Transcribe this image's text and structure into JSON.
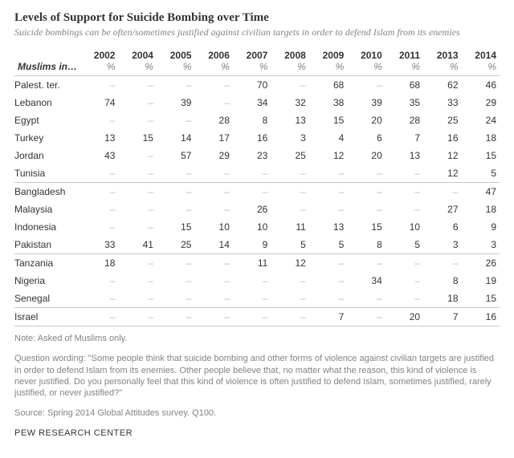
{
  "title": "Levels of Support for Suicide Bombing over Time",
  "subtitle": "Suicide bombings can be often/sometimes justified against civilian targets in order to defend Islam from its enemies",
  "stub_header": "Muslims in…",
  "pct_label": "%",
  "years": [
    "2002",
    "2004",
    "2005",
    "2006",
    "2007",
    "2008",
    "2009",
    "2010",
    "2011",
    "2013",
    "2014"
  ],
  "groups": [
    {
      "rows": [
        {
          "label": "Palest. ter.",
          "v": [
            "–",
            "–",
            "–",
            "–",
            "70",
            "–",
            "68",
            "–",
            "68",
            "62",
            "46"
          ]
        },
        {
          "label": "Lebanon",
          "v": [
            "74",
            "–",
            "39",
            "–",
            "34",
            "32",
            "38",
            "39",
            "35",
            "33",
            "29"
          ]
        },
        {
          "label": "Egypt",
          "v": [
            "–",
            "–",
            "–",
            "28",
            "8",
            "13",
            "15",
            "20",
            "28",
            "25",
            "24"
          ]
        },
        {
          "label": "Turkey",
          "v": [
            "13",
            "15",
            "14",
            "17",
            "16",
            "3",
            "4",
            "6",
            "7",
            "16",
            "18"
          ]
        },
        {
          "label": "Jordan",
          "v": [
            "43",
            "–",
            "57",
            "29",
            "23",
            "25",
            "12",
            "20",
            "13",
            "12",
            "15"
          ]
        },
        {
          "label": "Tunisia",
          "v": [
            "–",
            "–",
            "–",
            "–",
            "–",
            "–",
            "–",
            "–",
            "–",
            "12",
            "5"
          ]
        }
      ]
    },
    {
      "rows": [
        {
          "label": "Bangladesh",
          "v": [
            "–",
            "–",
            "–",
            "–",
            "–",
            "–",
            "–",
            "–",
            "–",
            "–",
            "47"
          ]
        },
        {
          "label": "Malaysia",
          "v": [
            "–",
            "–",
            "–",
            "–",
            "26",
            "–",
            "–",
            "–",
            "–",
            "27",
            "18"
          ]
        },
        {
          "label": "Indonesia",
          "v": [
            "–",
            "–",
            "15",
            "10",
            "10",
            "11",
            "13",
            "15",
            "10",
            "6",
            "9"
          ]
        },
        {
          "label": "Pakistan",
          "v": [
            "33",
            "41",
            "25",
            "14",
            "9",
            "5",
            "5",
            "8",
            "5",
            "3",
            "3"
          ]
        }
      ]
    },
    {
      "rows": [
        {
          "label": "Tanzania",
          "v": [
            "18",
            "–",
            "–",
            "–",
            "11",
            "12",
            "–",
            "–",
            "–",
            "–",
            "26"
          ]
        },
        {
          "label": "Nigeria",
          "v": [
            "–",
            "–",
            "–",
            "–",
            "–",
            "–",
            "–",
            "34",
            "–",
            "8",
            "19"
          ]
        },
        {
          "label": "Senegal",
          "v": [
            "–",
            "–",
            "–",
            "–",
            "–",
            "–",
            "–",
            "–",
            "–",
            "18",
            "15"
          ]
        }
      ]
    },
    {
      "rows": [
        {
          "label": "Israel",
          "v": [
            "–",
            "–",
            "–",
            "–",
            "–",
            "–",
            "7",
            "–",
            "20",
            "7",
            "16"
          ]
        }
      ]
    }
  ],
  "note": "Note: Asked of Muslims only.",
  "question": "Question wording: \"Some people think that suicide bombing and other forms of violence against civilian targets are justified in order to defend Islam from its enemies. Other people believe that, no matter what the reason, this kind of violence is never justified. Do you personally feel that this kind of violence is often justified to defend Islam, sometimes justified, rarely justified, or never justified?\"",
  "source": "Source: Spring 2014 Global Attitudes survey. Q100.",
  "brand": "PEW RESEARCH CENTER",
  "style": {
    "title_fontsize_pt": 15,
    "subtitle_fontsize_pt": 12,
    "table_fontsize_pt": 12,
    "footer_fontsize_pt": 11,
    "title_color": "#333333",
    "body_color": "#333333",
    "muted_color": "#838383",
    "dash_color": "#b8b8b8",
    "rule_color": "#c8c8c8",
    "background_color": "#ffffff",
    "font_title": "Georgia serif",
    "font_body": "Arial sans-serif"
  }
}
